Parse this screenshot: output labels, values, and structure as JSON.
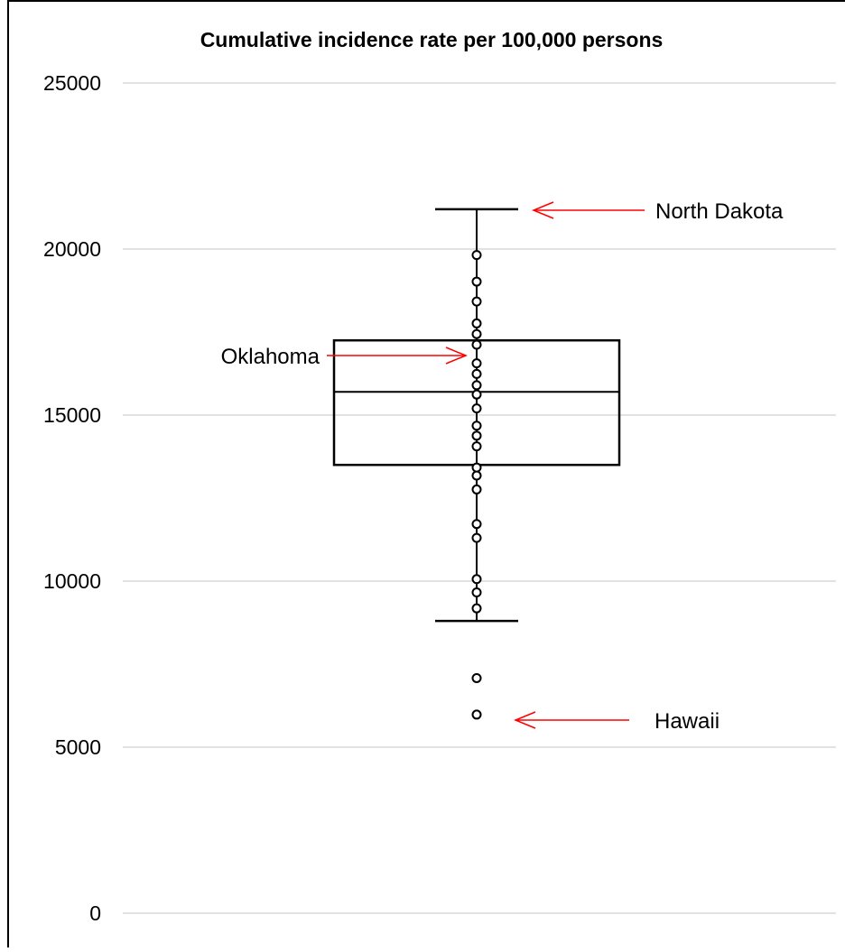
{
  "chart_data": {
    "type": "box",
    "title": "Cumulative incidence rate per 100,000 persons",
    "xlabel": "",
    "ylabel": "",
    "ylim": [
      0,
      25000
    ],
    "yticks": [
      0,
      5000,
      10000,
      15000,
      20000,
      25000
    ],
    "grid": true,
    "box": {
      "whisker_low": 8800,
      "q1": 13500,
      "median": 15700,
      "q3": 17250,
      "whisker_high": 21200
    },
    "points": [
      5980,
      7080,
      9180,
      9660,
      10060,
      11300,
      11720,
      12760,
      13180,
      13420,
      14060,
      14380,
      14680,
      15200,
      15620,
      15900,
      16240,
      16560,
      17120,
      17440,
      17760,
      18420,
      19020,
      19820,
      21200
    ],
    "annotations": [
      {
        "label": "North Dakota",
        "value": 21200,
        "side": "right"
      },
      {
        "label": "Oklahoma",
        "value": 16800,
        "side": "left"
      },
      {
        "label": "Hawaii",
        "value": 5800,
        "side": "right"
      }
    ],
    "colors": {
      "box": "#000000",
      "points": "#000000",
      "grid": "#d9d9d9",
      "arrow": "#ff0000",
      "frame": "#000000"
    }
  }
}
